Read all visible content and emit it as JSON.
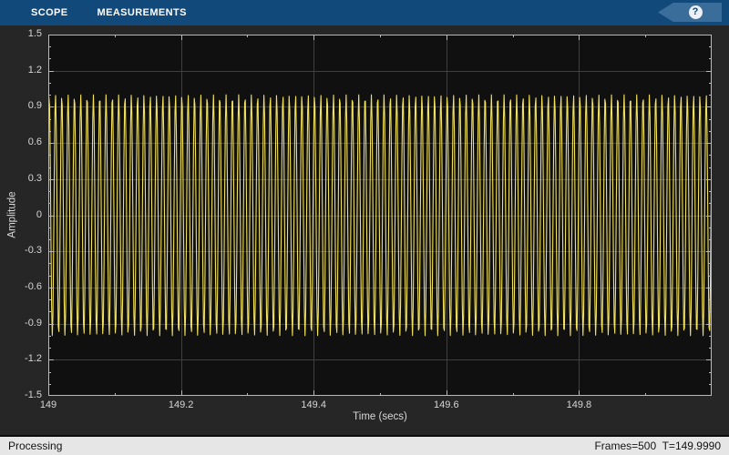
{
  "window": {
    "background": "#262626"
  },
  "toolbar": {
    "background": "#11497a",
    "tabs": [
      {
        "label": "SCOPE"
      },
      {
        "label": "MEASUREMENTS"
      }
    ],
    "help_button": {
      "glyph": "?",
      "tag_color": "#3b6d9a"
    }
  },
  "chart_data": {
    "type": "line",
    "title": "",
    "xlabel": "Time (secs)",
    "ylabel": "Amplitude",
    "xlim": [
      149,
      150
    ],
    "ylim": [
      -1.5,
      1.5
    ],
    "xtick_values": [
      149,
      149.2,
      149.4,
      149.6,
      149.8
    ],
    "xtick_labels": [
      "149",
      "149.2",
      "149.4",
      "149.6",
      "149.8"
    ],
    "x_minor_step": 0.1,
    "ytick_values": [
      1.5,
      1.2,
      0.9,
      0.6,
      0.3,
      0,
      -0.3,
      -0.6,
      -0.9,
      -1.2,
      -1.5
    ],
    "ytick_labels": [
      "1.5",
      "1.2",
      "0.9",
      "0.6",
      "0.3",
      "0",
      "-0.3",
      "-0.6",
      "-0.9",
      "-1.2",
      "-1.5"
    ],
    "y_minor_step": 0.1,
    "grid": true,
    "legend": "none",
    "line_color": "#f3e25c",
    "plot_background": "#101010",
    "grid_color": "#3f3f3f",
    "axis_color": "#b9b9b9",
    "tick_label_color": "#d6d6d6",
    "signal": {
      "waveform": "sine",
      "amplitude": 1.0,
      "frequency_hz": 105,
      "sample_rate_hz": 1000,
      "t_start": 149,
      "t_end": 150,
      "note": "Dense sine drawn with linear interpolation between 1 kHz samples; apparent peaks vary ~0.93-1.0"
    }
  },
  "statusbar": {
    "left": "Processing",
    "right": "Frames=500  T=149.9990"
  }
}
